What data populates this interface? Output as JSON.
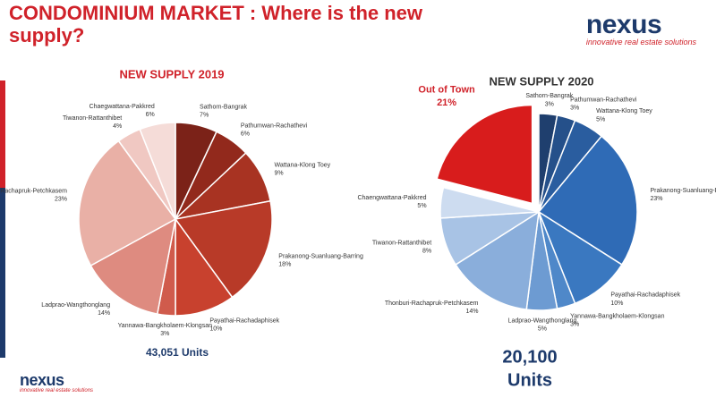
{
  "title": [
    "CONDOMINIUM MARKET : Where is the new",
    "supply?"
  ],
  "logo": {
    "name": "nexus",
    "tagline": "innovative real estate solutions"
  },
  "chart_data": [
    {
      "type": "pie",
      "title": "NEW SUPPLY 2019",
      "categories": [
        "Sathorn-Bangrak",
        "Pathumwan-Rachathevi",
        "Wattana-Klong Toey",
        "Prakanong-Suanluang-Barring",
        "Payathai-Rachadaphisek",
        "Yannawa-Bangkholaem-Klongsan",
        "Ladprao-Wangthonglang",
        "Thonburi-Rachapruk-Petchkasem",
        "Tiwanon-Rattanthibet",
        "Chaegwattana-Pakkred"
      ],
      "values": [
        7,
        6,
        9,
        18,
        10,
        3,
        14,
        23,
        4,
        6
      ],
      "value_labels": [
        "7%",
        "6%",
        "9%",
        "18%",
        "10%",
        "3%",
        "14%",
        "23%",
        "4%",
        "6%"
      ],
      "colors": [
        "#7b2218",
        "#92291c",
        "#a83322",
        "#b83a28",
        "#c8412e",
        "#d05b4c",
        "#de8b80",
        "#e9b0a6",
        "#f0c8c2",
        "#f5dcd8"
      ],
      "total_label": [
        "43,051 Units"
      ]
    },
    {
      "type": "pie",
      "title": "NEW SUPPLY 2020",
      "categories": [
        "Sathorn-Bangrak",
        "Pathumwan-Rachathevi",
        "Wattana-Klong Toey",
        "Prakanong-Suanluang-Barring",
        "Payathai-Rachadaphisek",
        "Yannawa-Bangkholaem-Klongsan",
        "Ladprao-Wangthonglang",
        "Thonburi-Rachapruk-Petchkasem",
        "Tiwanon-Rattanthibet",
        "Chaengwattana-Pakkred",
        "Out of Town"
      ],
      "values": [
        3,
        3,
        5,
        23,
        10,
        3,
        5,
        14,
        8,
        5,
        21
      ],
      "value_labels": [
        "3%",
        "3%",
        "5%",
        "23%",
        "10%",
        "3%",
        "5%",
        "14%",
        "8%",
        "5%",
        "21%"
      ],
      "colors": [
        "#1f3f6e",
        "#25508a",
        "#2a5d9f",
        "#2f6bb6",
        "#3a78c0",
        "#4f88c9",
        "#6d9bd2",
        "#8aaedb",
        "#a8c3e5",
        "#cddcf0",
        "#d81c1c"
      ],
      "explode": [
        false,
        false,
        false,
        false,
        false,
        false,
        false,
        false,
        false,
        false,
        true
      ],
      "total_label": [
        "20,100",
        "Units"
      ]
    }
  ]
}
